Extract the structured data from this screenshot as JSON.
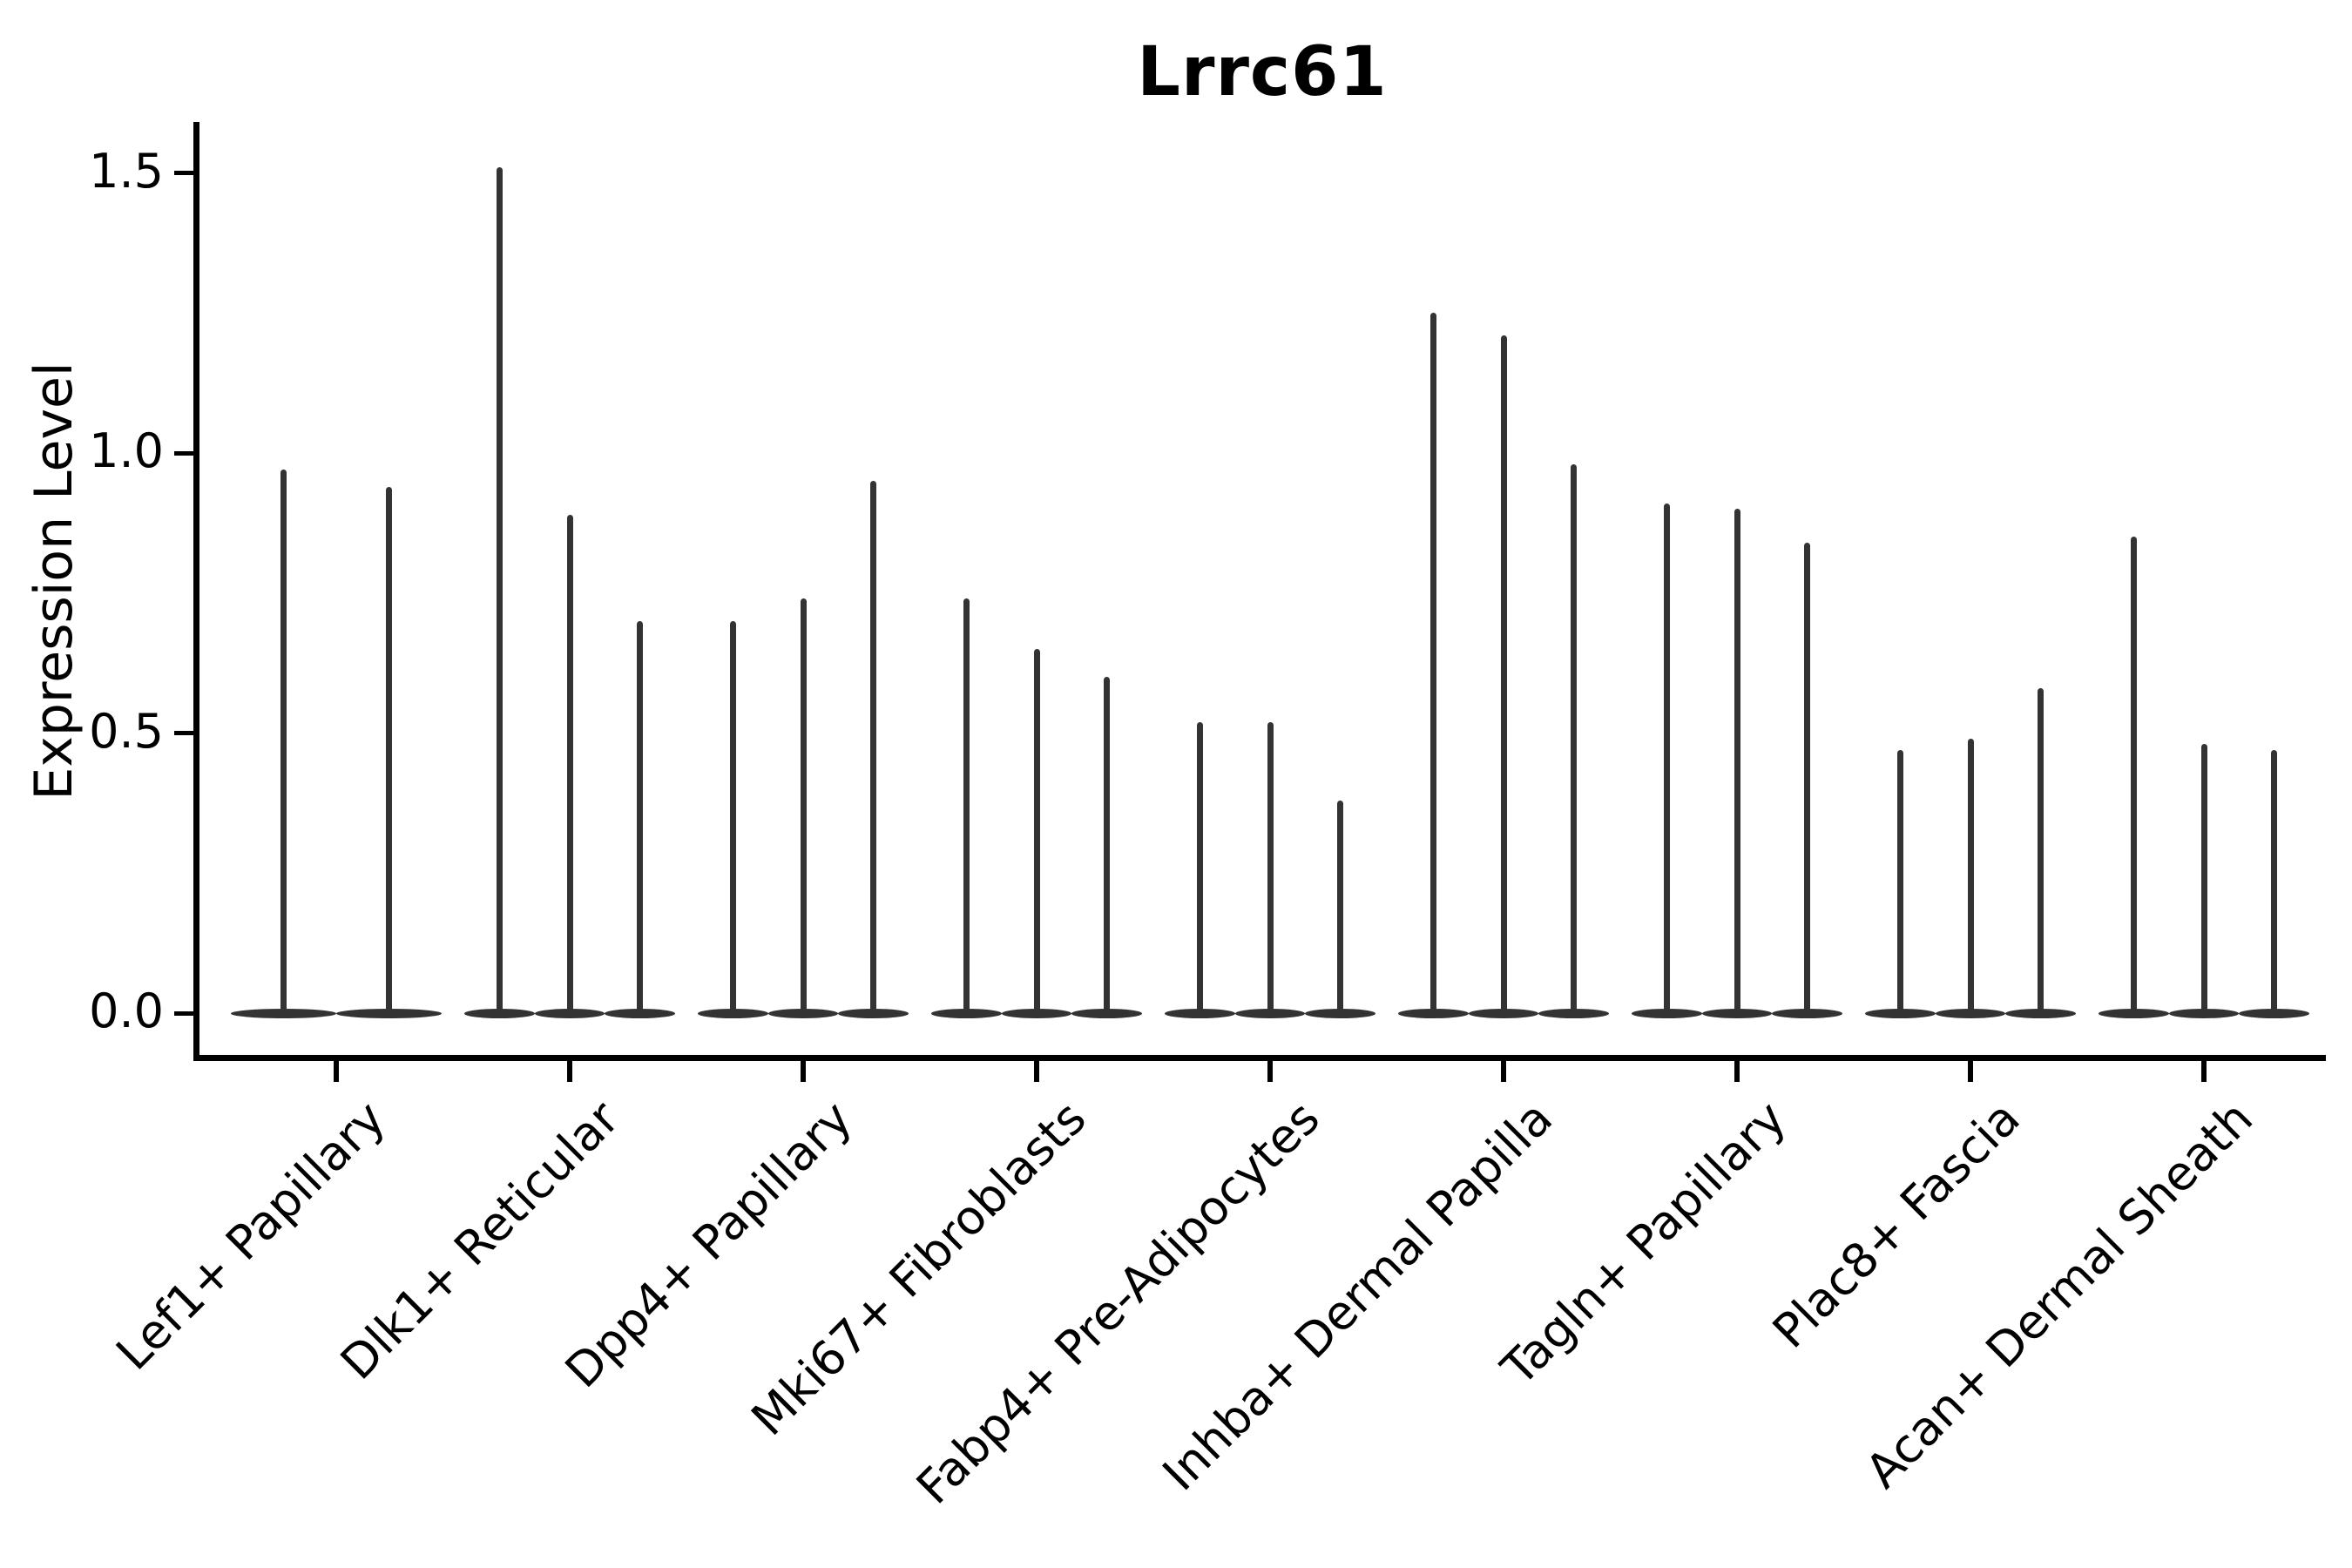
{
  "chart_data": {
    "type": "violin",
    "title": "Lrrc61",
    "xlabel": "",
    "ylabel": "Expression Level",
    "ylim": [
      0,
      1.58
    ],
    "yticks": [
      0.0,
      0.5,
      1.0,
      1.5
    ],
    "ytick_labels": [
      "0.0",
      "0.5",
      "1.0",
      "1.5"
    ],
    "grid": "off",
    "legend": "none",
    "violin_style": "narrow spikes: dense mass at 0 with thin line up to max expression",
    "ink_color": "#333333",
    "axis_color": "#000000",
    "categories": [
      "Lef1+ Papillary",
      "Dlk1+ Reticular",
      "Dpp4+ Papillary",
      "Mki67+ Fibroblasts",
      "Fabp4+ Pre-Adipocytes",
      "Inhba+ Dermal Papilla",
      "Tagln+ Papillary",
      "Plac8+ Fascia",
      "Acan+ Dermal Sheath"
    ],
    "series": [
      {
        "category": "Lef1+ Papillary",
        "violin_max_values": [
          0.97,
          0.94
        ]
      },
      {
        "category": "Dlk1+ Reticular",
        "violin_max_values": [
          1.51,
          0.89,
          0.7
        ]
      },
      {
        "category": "Dpp4+ Papillary",
        "violin_max_values": [
          0.7,
          0.74,
          0.95
        ]
      },
      {
        "category": "Mki67+ Fibroblasts",
        "violin_max_values": [
          0.74,
          0.65,
          0.6
        ]
      },
      {
        "category": "Fabp4+ Pre-Adipocytes",
        "violin_max_values": [
          0.52,
          0.52,
          0.38
        ]
      },
      {
        "category": "Inhba+ Dermal Papilla",
        "violin_max_values": [
          1.25,
          1.21,
          0.98
        ]
      },
      {
        "category": "Tagln+ Papillary",
        "violin_max_values": [
          0.91,
          0.9,
          0.84
        ]
      },
      {
        "category": "Plac8+ Fascia",
        "violin_max_values": [
          0.47,
          0.49,
          0.58
        ]
      },
      {
        "category": "Acan+ Dermal Sheath",
        "violin_max_values": [
          0.85,
          0.48,
          0.47
        ]
      }
    ]
  }
}
